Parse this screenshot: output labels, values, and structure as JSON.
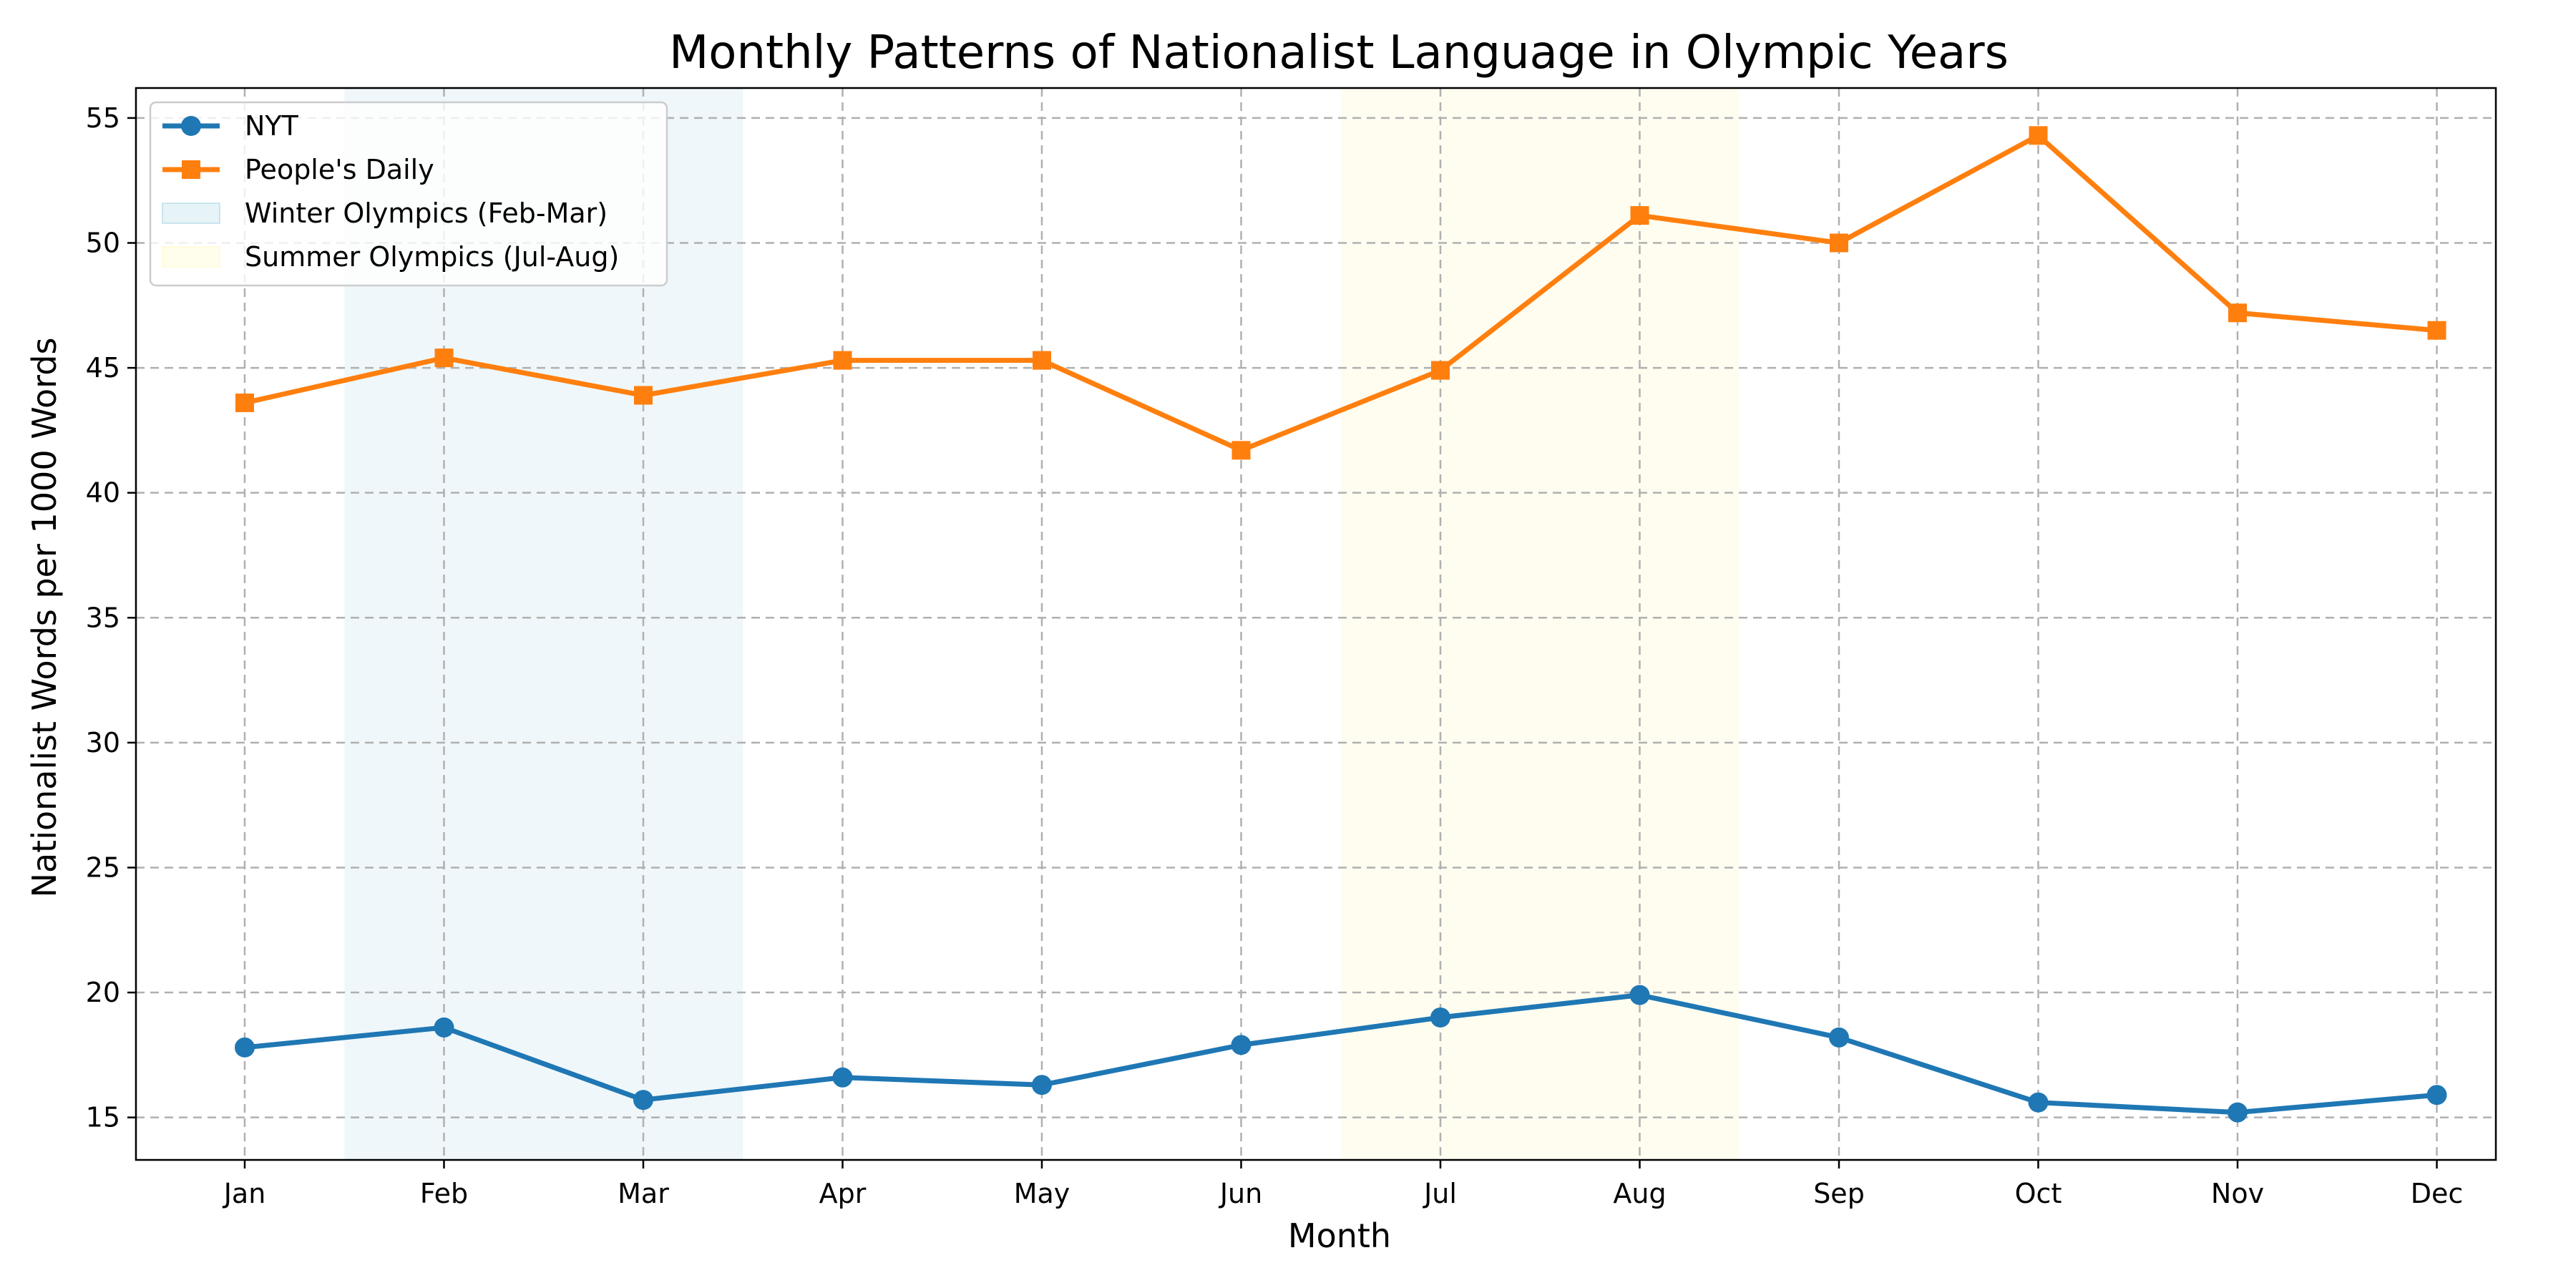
{
  "chart_data": {
    "type": "line",
    "title": "Monthly Patterns of Nationalist Language in Olympic Years",
    "xlabel": "Month",
    "ylabel": "Nationalist Words per 1000 Words",
    "categories": [
      "Jan",
      "Feb",
      "Mar",
      "Apr",
      "May",
      "Jun",
      "Jul",
      "Aug",
      "Sep",
      "Oct",
      "Nov",
      "Dec"
    ],
    "ylim": [
      13.3,
      56.2
    ],
    "yticks": [
      15,
      20,
      25,
      30,
      35,
      40,
      45,
      50,
      55
    ],
    "grid": true,
    "legend_position": "top-left",
    "series": [
      {
        "name": "NYT",
        "color": "#1f77b4",
        "marker": "circle",
        "values": [
          17.8,
          18.6,
          15.7,
          16.6,
          16.3,
          17.9,
          19.0,
          19.9,
          18.2,
          15.6,
          15.2,
          15.9
        ]
      },
      {
        "name": "People's Daily",
        "color": "#ff7f0e",
        "marker": "square",
        "values": [
          43.6,
          45.4,
          43.9,
          45.3,
          45.3,
          41.7,
          44.9,
          51.1,
          50.0,
          54.3,
          47.2,
          46.5
        ]
      }
    ],
    "shaded_regions": [
      {
        "name": "Winter Olympics (Feb-Mar)",
        "color": "#add8e6",
        "opacity": 0.2,
        "from": "Feb",
        "to": "Mar"
      },
      {
        "name": "Summer Olympics (Jul-Aug)",
        "color": "#fffacd",
        "opacity": 0.3,
        "from": "Jul",
        "to": "Aug"
      }
    ]
  }
}
